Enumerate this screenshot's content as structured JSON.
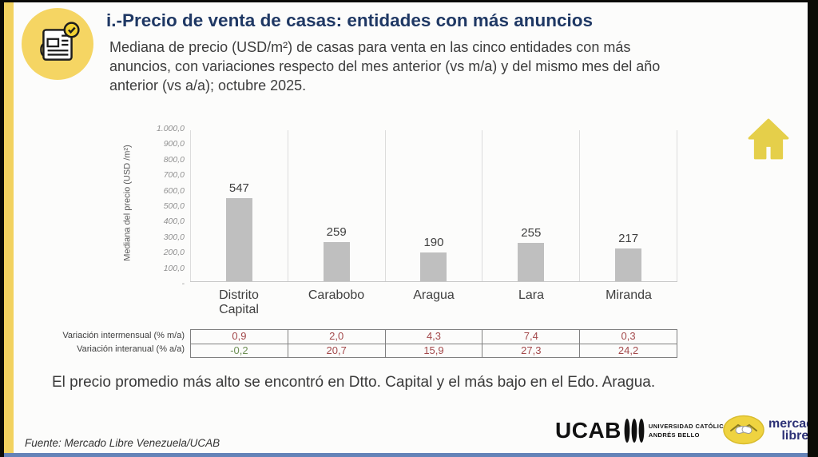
{
  "slide": {
    "title": "i.-Precio de venta de casas: entidades con más anuncios",
    "subtitle": "Mediana de precio (USD/m²) de casas para venta en las cinco entidades con más anuncios, con variaciones respecto del mes anterior (vs m/a) y del mismo mes del año anterior (vs a/a); octubre 2025.",
    "note": "El precio promedio más alto se encontró en Dtto. Capital y el más bajo en el Edo. Aragua.",
    "source": "Fuente: Mercado Libre Venezuela/UCAB",
    "accent_color": "#F2D25F",
    "title_color": "#1F3864"
  },
  "chart_data": {
    "type": "bar",
    "categories": [
      "Distrito Capital",
      "Carabobo",
      "Aragua",
      "Lara",
      "Miranda"
    ],
    "values": [
      547,
      259,
      190,
      255,
      217
    ],
    "value_labels": [
      "547",
      "259",
      "190",
      "255",
      "217"
    ],
    "title": "",
    "xlabel": "",
    "ylabel": "Mediana del precio (USD /m²)",
    "ylim": [
      0,
      1000
    ],
    "ytick_labels": [
      "1.000,0",
      "900,0",
      "800,0",
      "700,0",
      "600,0",
      "500,0",
      "400,0",
      "300,0",
      "200,0",
      "100,0",
      "-"
    ],
    "bar_color": "#BFBFBF",
    "grid": "vertical category separators, light gray",
    "legend": "none"
  },
  "variation_table": {
    "rows": [
      {
        "label": "Variación intermensual (% m/a)",
        "values": [
          "0,9",
          "2,0",
          "4,3",
          "7,4",
          "0,3"
        ],
        "value_colors": [
          "#A3494B",
          "#A3494B",
          "#A3494B",
          "#A3494B",
          "#A3494B"
        ]
      },
      {
        "label": "Variación interanual (% a/a)",
        "values": [
          "-0,2",
          "20,7",
          "15,9",
          "27,3",
          "24,2"
        ],
        "value_colors": [
          "#6E8F55",
          "#A3494B",
          "#A3494B",
          "#A3494B",
          "#A3494B"
        ]
      }
    ]
  },
  "footer": {
    "ucab": {
      "wordmark": "UCAB",
      "line1": "UNIVERSIDAD CATÓLICA",
      "line2": "ANDRÉS BELLO"
    },
    "mercadolibre": {
      "line1": "mercado",
      "line2": "libre",
      "text_color": "#2D3277",
      "oval_color": "#EFD340"
    }
  }
}
